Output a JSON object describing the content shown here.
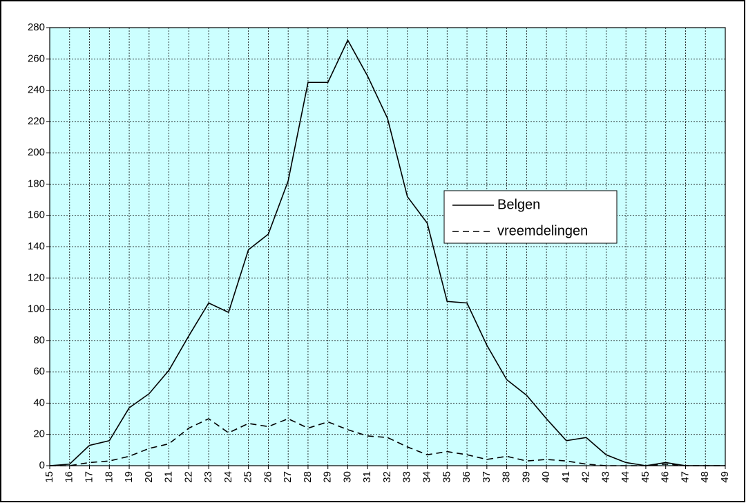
{
  "chart_data": {
    "type": "line",
    "x": [
      15,
      16,
      17,
      18,
      19,
      20,
      21,
      22,
      23,
      24,
      25,
      26,
      27,
      28,
      29,
      30,
      31,
      32,
      33,
      34,
      35,
      36,
      37,
      38,
      39,
      40,
      41,
      42,
      43,
      44,
      45,
      46,
      47,
      48,
      49
    ],
    "series": [
      {
        "name": "Belgen",
        "color": "#000000",
        "style": "solid",
        "values": [
          0,
          1,
          13,
          16,
          37,
          46,
          61,
          83,
          104,
          98,
          138,
          148,
          182,
          245,
          245,
          272,
          249,
          222,
          172,
          155,
          105,
          104,
          77,
          55,
          45,
          30,
          16,
          18,
          7,
          2,
          0,
          2,
          0,
          0,
          0
        ]
      },
      {
        "name": "vreemdelingen",
        "color": "#000000",
        "style": "dashed",
        "values": [
          0,
          0,
          2,
          3,
          6,
          11,
          14,
          24,
          30,
          21,
          27,
          25,
          30,
          24,
          28,
          23,
          19,
          18,
          12,
          7,
          9,
          7,
          4,
          6,
          3,
          4,
          3,
          1,
          0,
          0,
          0,
          1,
          0,
          0,
          0
        ]
      }
    ],
    "xlim": [
      15,
      49
    ],
    "xticks": [
      15,
      16,
      17,
      18,
      19,
      20,
      21,
      22,
      23,
      24,
      25,
      26,
      27,
      28,
      29,
      30,
      31,
      32,
      33,
      34,
      35,
      36,
      37,
      38,
      39,
      40,
      41,
      42,
      43,
      44,
      45,
      46,
      47,
      48,
      49
    ],
    "ylim": [
      0,
      280
    ],
    "yticks": [
      0,
      20,
      40,
      60,
      80,
      100,
      120,
      140,
      160,
      180,
      200,
      220,
      240,
      260,
      280
    ],
    "grid": true,
    "background": "#ccffff",
    "legend": "right"
  }
}
